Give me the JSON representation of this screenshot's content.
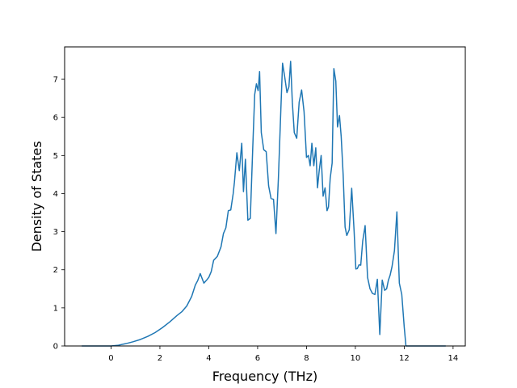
{
  "chart_data": {
    "type": "line",
    "title": "",
    "xlabel": "Frequency (THz)",
    "ylabel": "Density of States",
    "xlim": [
      -1.9,
      14.5
    ],
    "ylim": [
      0,
      7.85
    ],
    "xticks": [
      0,
      2,
      4,
      6,
      8,
      10,
      12,
      14
    ],
    "yticks": [
      0,
      1,
      2,
      3,
      4,
      5,
      6,
      7
    ],
    "grid": false,
    "legend": "none",
    "series": [
      {
        "color": "#1f77b4",
        "x": [
          -1.2,
          -0.5,
          0.0,
          0.3,
          0.6,
          0.9,
          1.2,
          1.5,
          1.8,
          2.1,
          2.4,
          2.7,
          2.9,
          3.1,
          3.3,
          3.45,
          3.55,
          3.65,
          3.8,
          3.9,
          4.0,
          4.1,
          4.2,
          4.35,
          4.5,
          4.6,
          4.7,
          4.8,
          4.9,
          5.0,
          5.05,
          5.15,
          5.25,
          5.35,
          5.42,
          5.5,
          5.6,
          5.7,
          5.8,
          5.88,
          5.95,
          6.02,
          6.08,
          6.15,
          6.25,
          6.35,
          6.45,
          6.55,
          6.65,
          6.75,
          6.85,
          6.95,
          7.02,
          7.1,
          7.2,
          7.28,
          7.35,
          7.42,
          7.5,
          7.6,
          7.7,
          7.8,
          7.9,
          8.0,
          8.08,
          8.15,
          8.22,
          8.3,
          8.38,
          8.45,
          8.52,
          8.6,
          8.68,
          8.76,
          8.84,
          8.9,
          8.97,
          9.05,
          9.12,
          9.2,
          9.27,
          9.35,
          9.42,
          9.5,
          9.58,
          9.65,
          9.75,
          9.85,
          9.95,
          10.02,
          10.08,
          10.15,
          10.22,
          10.3,
          10.4,
          10.5,
          10.6,
          10.7,
          10.8,
          10.9,
          11.0,
          11.1,
          11.2,
          11.28,
          11.35,
          11.42,
          11.5,
          11.6,
          11.7,
          11.8,
          11.9,
          12.0,
          12.07,
          12.15,
          12.25,
          12.33,
          12.42,
          12.5,
          12.7,
          13.0,
          13.4,
          13.7
        ],
        "y": [
          0.0,
          0.0,
          0.0,
          0.02,
          0.06,
          0.11,
          0.17,
          0.25,
          0.35,
          0.48,
          0.63,
          0.8,
          0.9,
          1.05,
          1.3,
          1.6,
          1.72,
          1.9,
          1.65,
          1.72,
          1.8,
          1.95,
          2.25,
          2.35,
          2.6,
          2.95,
          3.1,
          3.55,
          3.57,
          4.0,
          4.3,
          5.07,
          4.6,
          5.32,
          4.05,
          4.9,
          3.3,
          3.35,
          5.2,
          6.6,
          6.88,
          6.7,
          7.2,
          5.6,
          5.15,
          5.1,
          4.2,
          3.87,
          3.85,
          2.95,
          4.4,
          6.2,
          7.42,
          7.1,
          6.65,
          6.8,
          7.47,
          6.4,
          5.6,
          5.45,
          6.4,
          6.72,
          6.15,
          4.95,
          5.0,
          4.73,
          5.32,
          4.73,
          5.2,
          4.15,
          4.6,
          5.0,
          3.93,
          4.15,
          3.55,
          3.65,
          4.4,
          4.8,
          7.28,
          6.95,
          5.75,
          6.05,
          5.5,
          4.5,
          3.12,
          2.9,
          3.05,
          4.14,
          3.0,
          2.02,
          2.03,
          2.13,
          2.12,
          2.75,
          3.16,
          1.8,
          1.5,
          1.38,
          1.35,
          1.75,
          0.3,
          1.73,
          1.46,
          1.5,
          1.72,
          1.85,
          2.08,
          2.5,
          3.52,
          1.65,
          1.35,
          0.5,
          0.0,
          0.0,
          0.0,
          0.0,
          0.0,
          0.0,
          0.0,
          0.0,
          0.0,
          0.0
        ]
      }
    ]
  }
}
